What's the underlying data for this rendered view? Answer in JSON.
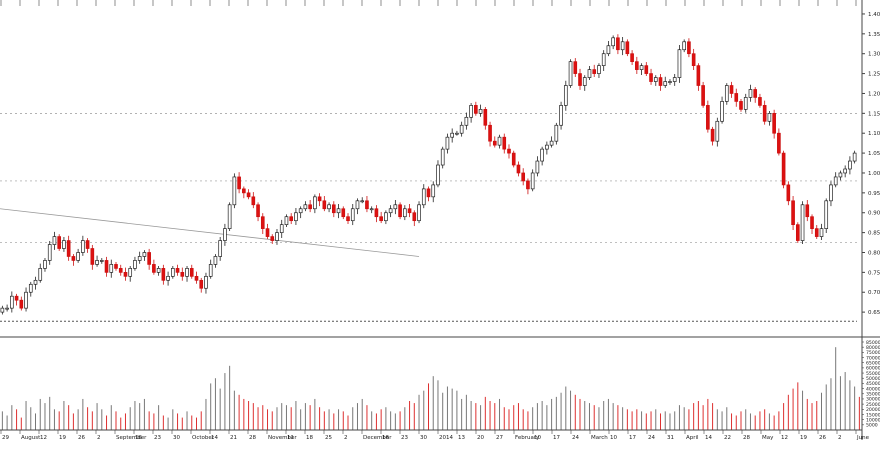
{
  "chart_data": {
    "type": "candlestick",
    "title": "",
    "xlabel": "",
    "ylabel": "",
    "ylim": [
      0.6,
      1.42
    ],
    "y_ticks": [
      "0.65",
      "0.70",
      "0.75",
      "0.80",
      "0.85",
      "0.90",
      "0.95",
      "1.00",
      "1.05",
      "1.10",
      "1.15",
      "1.20",
      "1.25",
      "1.30",
      "1.35",
      "1.40"
    ],
    "x_tick_labels": [
      "29",
      "August",
      "12",
      "19",
      "26",
      "2",
      "September",
      "16",
      "23",
      "30",
      "October",
      "14",
      "21",
      "28",
      "November",
      "11",
      "18",
      "25",
      "2",
      "December",
      "16",
      "23",
      "30",
      "2014",
      "13",
      "20",
      "27",
      "February",
      "10",
      "17",
      "24",
      "March",
      "10",
      "17",
      "24",
      "31",
      "April",
      "14",
      "22",
      "28",
      "May",
      "12",
      "19",
      "26",
      "2",
      "June"
    ],
    "price_series": {
      "name": "",
      "up_color": "#ffffff",
      "down_color": "#dd1111",
      "close": [
        0.66,
        0.66,
        0.69,
        0.68,
        0.66,
        0.7,
        0.72,
        0.73,
        0.76,
        0.78,
        0.82,
        0.84,
        0.81,
        0.83,
        0.79,
        0.78,
        0.8,
        0.83,
        0.81,
        0.77,
        0.78,
        0.78,
        0.75,
        0.77,
        0.76,
        0.75,
        0.74,
        0.76,
        0.78,
        0.79,
        0.8,
        0.77,
        0.75,
        0.76,
        0.73,
        0.74,
        0.76,
        0.75,
        0.74,
        0.76,
        0.74,
        0.73,
        0.71,
        0.74,
        0.77,
        0.79,
        0.83,
        0.86,
        0.92,
        0.99,
        0.96,
        0.95,
        0.94,
        0.92,
        0.89,
        0.86,
        0.84,
        0.83,
        0.85,
        0.87,
        0.89,
        0.88,
        0.9,
        0.91,
        0.92,
        0.91,
        0.94,
        0.93,
        0.91,
        0.92,
        0.9,
        0.91,
        0.89,
        0.88,
        0.91,
        0.93,
        0.93,
        0.91,
        0.91,
        0.89,
        0.88,
        0.9,
        0.91,
        0.92,
        0.89,
        0.91,
        0.9,
        0.88,
        0.92,
        0.96,
        0.94,
        0.97,
        1.02,
        1.06,
        1.09,
        1.1,
        1.1,
        1.12,
        1.14,
        1.17,
        1.15,
        1.16,
        1.12,
        1.08,
        1.07,
        1.09,
        1.06,
        1.05,
        1.02,
        1.0,
        0.98,
        0.96,
        1.0,
        1.03,
        1.06,
        1.07,
        1.08,
        1.12,
        1.17,
        1.22,
        1.28,
        1.25,
        1.22,
        1.24,
        1.26,
        1.25,
        1.27,
        1.3,
        1.32,
        1.34,
        1.31,
        1.33,
        1.3,
        1.28,
        1.26,
        1.27,
        1.25,
        1.23,
        1.24,
        1.22,
        1.23,
        1.23,
        1.24,
        1.31,
        1.33,
        1.3,
        1.27,
        1.22,
        1.17,
        1.11,
        1.08,
        1.13,
        1.18,
        1.22,
        1.2,
        1.18,
        1.16,
        1.19,
        1.21,
        1.19,
        1.17,
        1.13,
        1.15,
        1.1,
        1.05,
        0.97,
        0.93,
        0.87,
        0.83,
        0.92,
        0.89,
        0.86,
        0.84,
        0.86,
        0.93,
        0.97,
        0.99,
        1.0,
        1.01,
        1.03,
        1.05
      ]
    },
    "volume_series": {
      "name": "",
      "ylim": [
        0,
        85000
      ],
      "y_ticks": [
        "5000",
        "10000",
        "15000",
        "20000",
        "25000",
        "30000",
        "35000",
        "40000",
        "45000",
        "50000",
        "55000",
        "60000",
        "65000",
        "70000",
        "75000",
        "80000",
        "85000"
      ],
      "values": [
        18000,
        14000,
        24000,
        20000,
        12000,
        28000,
        22000,
        16000,
        30000,
        26000,
        32000,
        20000,
        18000,
        28000,
        24000,
        16000,
        20000,
        30000,
        22000,
        18000,
        26000,
        20000,
        14000,
        24000,
        18000,
        12000,
        16000,
        22000,
        28000,
        26000,
        30000,
        18000,
        16000,
        24000,
        14000,
        12000,
        20000,
        16000,
        12000,
        18000,
        14000,
        12000,
        18000,
        30000,
        45000,
        50000,
        40000,
        55000,
        62000,
        38000,
        34000,
        30000,
        28000,
        26000,
        22000,
        24000,
        20000,
        18000,
        22000,
        26000,
        24000,
        22000,
        28000,
        20000,
        26000,
        24000,
        30000,
        22000,
        18000,
        20000,
        16000,
        20000,
        18000,
        14000,
        22000,
        26000,
        30000,
        24000,
        18000,
        16000,
        20000,
        22000,
        18000,
        16000,
        18000,
        22000,
        28000,
        26000,
        34000,
        38000,
        45000,
        52000,
        48000,
        36000,
        42000,
        40000,
        38000,
        30000,
        34000,
        28000,
        26000,
        24000,
        32000,
        28000,
        26000,
        30000,
        22000,
        20000,
        24000,
        26000,
        20000,
        18000,
        22000,
        26000,
        28000,
        24000,
        30000,
        32000,
        36000,
        42000,
        38000,
        34000,
        30000,
        28000,
        26000,
        24000,
        22000,
        28000,
        30000,
        26000,
        24000,
        22000,
        20000,
        18000,
        20000,
        18000,
        16000,
        18000,
        20000,
        16000,
        18000,
        16000,
        18000,
        24000,
        22000,
        20000,
        26000,
        28000,
        24000,
        30000,
        26000,
        20000,
        18000,
        22000,
        16000,
        14000,
        18000,
        20000,
        16000,
        14000,
        18000,
        20000,
        16000,
        14000,
        18000,
        26000,
        34000,
        40000,
        46000,
        38000,
        30000,
        26000,
        28000,
        36000,
        44000,
        50000,
        80000,
        52000,
        56000,
        48000,
        42000,
        32000
      ]
    },
    "annotations": [
      {
        "kind": "trendline",
        "name": "",
        "from": [
          0,
          0.91
        ],
        "to": [
          88,
          0.79
        ]
      },
      {
        "kind": "hline_dashed",
        "y": 1.15
      },
      {
        "kind": "hline_dashed",
        "y": 0.98
      },
      {
        "kind": "hline_dashed",
        "y": 0.825
      },
      {
        "kind": "hline_dashed",
        "y": 0.627
      }
    ]
  }
}
